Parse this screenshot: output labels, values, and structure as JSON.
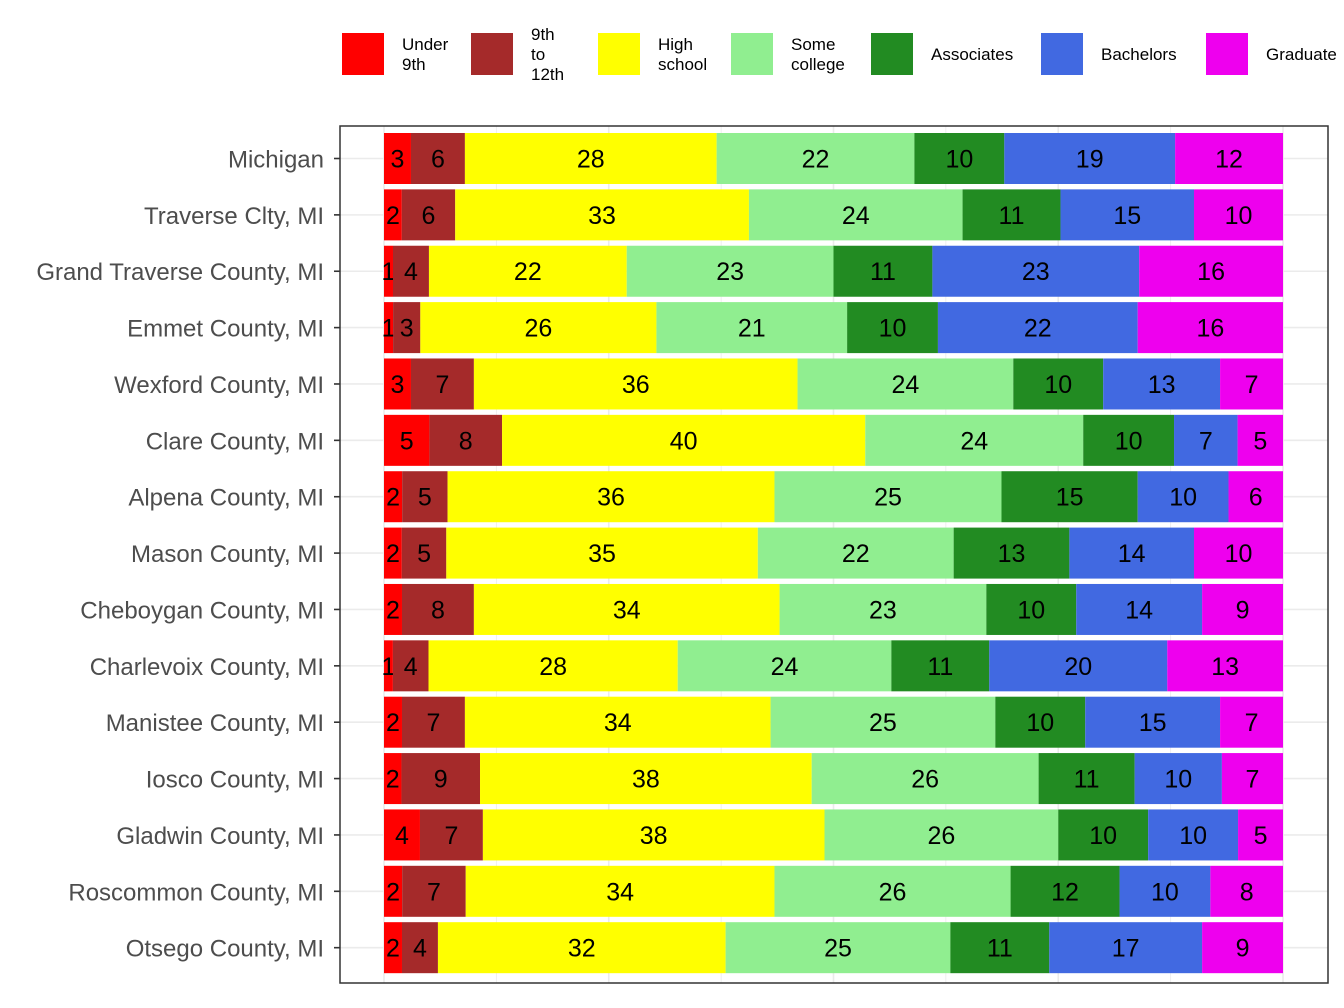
{
  "chart_data": {
    "type": "bar",
    "orientation": "horizontal",
    "stacked": true,
    "stack_mode": "percent",
    "legend_position": "top",
    "grid": true,
    "xlim": [
      0,
      100
    ],
    "categories": [
      "Michigan",
      "Traverse Clty, MI",
      "Grand Traverse County, MI",
      "Emmet County, MI",
      "Wexford County, MI",
      "Clare County, MI",
      "Alpena County, MI",
      "Mason County, MI",
      "Cheboygan County, MI",
      "Charlevoix County, MI",
      "Manistee County, MI",
      "Iosco County, MI",
      "Gladwin County, MI",
      "Roscommon County, MI",
      "Otsego County, MI"
    ],
    "series": [
      {
        "name": "Under\n9th",
        "color": "#ff0000",
        "values": [
          3,
          2,
          1,
          1,
          3,
          5,
          2,
          2,
          2,
          1,
          2,
          2,
          4,
          2,
          2
        ]
      },
      {
        "name": "9th to\n12th",
        "color": "#a52a2a",
        "values": [
          6,
          6,
          4,
          3,
          7,
          8,
          5,
          5,
          8,
          4,
          7,
          9,
          7,
          7,
          4
        ]
      },
      {
        "name": "High\nschool",
        "color": "#ffff00",
        "values": [
          28,
          33,
          22,
          26,
          36,
          40,
          36,
          35,
          34,
          28,
          34,
          38,
          38,
          34,
          32
        ]
      },
      {
        "name": "Some\ncollege",
        "color": "#90ee90",
        "values": [
          22,
          24,
          23,
          21,
          24,
          24,
          25,
          22,
          23,
          24,
          25,
          26,
          26,
          26,
          25
        ]
      },
      {
        "name": "Associates",
        "color": "#228b22",
        "values": [
          10,
          11,
          11,
          10,
          10,
          10,
          15,
          13,
          10,
          11,
          10,
          11,
          10,
          12,
          11
        ]
      },
      {
        "name": "Bachelors",
        "color": "#4169e1",
        "values": [
          19,
          15,
          23,
          22,
          13,
          7,
          10,
          14,
          14,
          20,
          15,
          10,
          10,
          10,
          17
        ]
      },
      {
        "name": "Graduate",
        "color": "#ee00ee",
        "values": [
          12,
          10,
          16,
          16,
          7,
          5,
          6,
          10,
          9,
          13,
          7,
          7,
          5,
          8,
          9
        ]
      }
    ]
  }
}
